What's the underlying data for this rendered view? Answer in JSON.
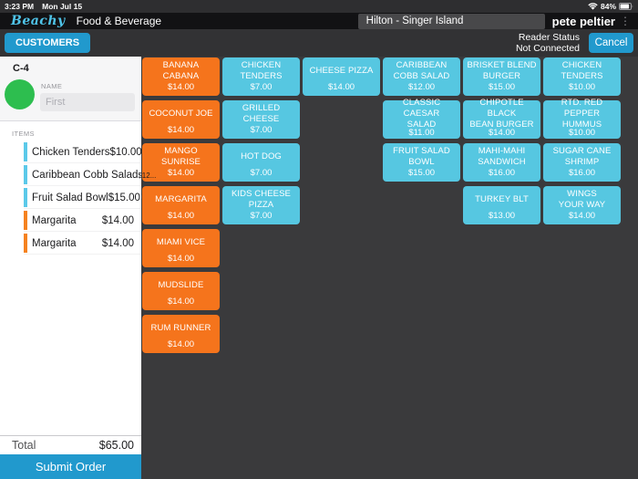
{
  "status_bar": {
    "time": "3:23 PM",
    "date": "Mon Jul 15",
    "battery_percent": "84%"
  },
  "header": {
    "brand": "Beachy",
    "title": "Food & Beverage",
    "location": "Hilton - Singer Island",
    "user": "pete peltier",
    "more_icon": "⋮"
  },
  "toolbar": {
    "customers": "CUSTOMERS",
    "reader_status": "Reader Status\nNot Connected",
    "cancel": "Cancel"
  },
  "order_panel": {
    "tab": "C-4",
    "name_label": "NAME",
    "first_placeholder": "First",
    "items_label": "ITEMS",
    "items": [
      {
        "name": "Chicken Tenders",
        "price": "$10.00",
        "color": "blue",
        "price_small": false
      },
      {
        "name": "Caribbean Cobb Salad",
        "price": "$12...",
        "color": "blue",
        "price_small": true
      },
      {
        "name": "Fruit Salad Bowl",
        "price": "$15.00",
        "color": "blue",
        "price_small": false
      },
      {
        "name": "Margarita",
        "price": "$14.00",
        "color": "orange",
        "price_small": false
      },
      {
        "name": "Margarita",
        "price": "$14.00",
        "color": "orange",
        "price_small": false
      }
    ],
    "total_label": "Total",
    "total_value": "$65.00",
    "submit": "Submit Order"
  },
  "menu": {
    "columns": [
      {
        "tiles": [
          {
            "name": "BANANA CABANA",
            "price": "$14.00",
            "color": "orange"
          },
          {
            "name": "COCONUT JOE",
            "price": "$14.00",
            "color": "orange"
          },
          {
            "name": "MANGO SUNRISE",
            "price": "$14.00",
            "color": "orange"
          },
          {
            "name": "MARGARITA",
            "price": "$14.00",
            "color": "orange"
          },
          {
            "name": "MIAMI VICE",
            "price": "$14.00",
            "color": "orange"
          },
          {
            "name": "MUDSLIDE",
            "price": "$14.00",
            "color": "orange"
          },
          {
            "name": "RUM RUNNER",
            "price": "$14.00",
            "color": "orange"
          }
        ]
      },
      {
        "tiles": [
          {
            "name": "CHICKEN\nTENDERS",
            "price": "$7.00",
            "color": "blue"
          },
          {
            "name": "GRILLED CHEESE",
            "price": "$7.00",
            "color": "blue"
          },
          {
            "name": "HOT DOG",
            "price": "$7.00",
            "color": "blue"
          },
          {
            "name": "KIDS CHEESE\nPIZZA",
            "price": "$7.00",
            "color": "blue"
          }
        ]
      },
      {
        "tiles": [
          {
            "name": "CHEESE PIZZA",
            "price": "$14.00",
            "color": "blue"
          }
        ]
      },
      {
        "tiles": [
          {
            "name": "CARIBBEAN\nCOBB SALAD",
            "price": "$12.00",
            "color": "blue"
          },
          {
            "name": "CLASSIC CAESAR\nSALAD",
            "price": "$11.00",
            "color": "blue"
          },
          {
            "name": "FRUIT SALAD\nBOWL",
            "price": "$15.00",
            "color": "blue"
          }
        ]
      },
      {
        "tiles": [
          {
            "name": "BRISKET BLEND\nBURGER",
            "price": "$15.00",
            "color": "blue"
          },
          {
            "name": "CHIPOTLE BLACK\nBEAN BURGER",
            "price": "$14.00",
            "color": "blue"
          },
          {
            "name": "MAHI-MAHI\nSANDWICH",
            "price": "$16.00",
            "color": "blue"
          },
          {
            "name": "TURKEY BLT",
            "price": "$13.00",
            "color": "blue"
          }
        ]
      },
      {
        "tiles": [
          {
            "name": "CHICKEN\nTENDERS",
            "price": "$10.00",
            "color": "blue"
          },
          {
            "name": "RTD. RED PEPPER\nHUMMUS",
            "price": "$10.00",
            "color": "blue"
          },
          {
            "name": "SUGAR CANE\nSHRIMP",
            "price": "$16.00",
            "color": "blue"
          },
          {
            "name": "WINGS\nYOUR WAY",
            "price": "$14.00",
            "color": "blue"
          }
        ]
      }
    ]
  },
  "colors": {
    "accent_blue": "#2199cd",
    "brand_blue": "#4fc4e9",
    "tile_blue": "#56c7e1",
    "tile_orange": "#f5741c",
    "bar_blue": "#5bc9e9",
    "bar_orange": "#f5821f",
    "avatar_green": "#2dbe4f"
  }
}
